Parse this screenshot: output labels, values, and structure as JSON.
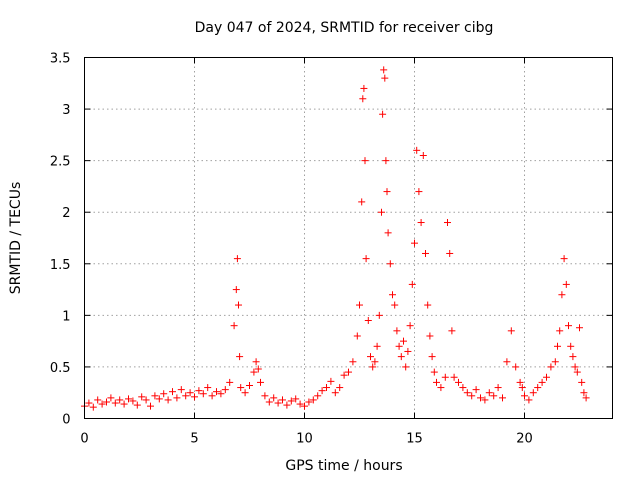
{
  "chart_data": {
    "type": "scatter",
    "title": "Day 047 of 2024, SRMTID for receiver cibg",
    "xlabel": "GPS time / hours",
    "ylabel": "SRMTID / TECUs",
    "xlim": [
      0,
      24
    ],
    "ylim": [
      0,
      3.5
    ],
    "xticks": [
      0,
      5,
      10,
      15,
      20
    ],
    "xtick_labels": [
      "0",
      "5",
      "10",
      "15",
      "20"
    ],
    "yticks": [
      0,
      0.5,
      1,
      1.5,
      2,
      2.5,
      3,
      3.5
    ],
    "ytick_labels": [
      "0",
      "0.5",
      "1",
      "1.5",
      "2",
      "2.5",
      "3",
      "3.5"
    ],
    "grid": true,
    "marker": "+",
    "series": [
      {
        "name": "SRMTID",
        "color": "#ff0000",
        "x": [
          0.0,
          0.2,
          0.4,
          0.6,
          0.8,
          1.0,
          1.2,
          1.4,
          1.6,
          1.8,
          2.0,
          2.2,
          2.4,
          2.6,
          2.8,
          3.0,
          3.2,
          3.4,
          3.6,
          3.8,
          4.0,
          4.2,
          4.4,
          4.6,
          4.8,
          5.0,
          5.2,
          5.4,
          5.6,
          5.8,
          6.0,
          6.2,
          6.4,
          6.6,
          6.8,
          6.9,
          6.95,
          7.0,
          7.05,
          7.1,
          7.3,
          7.5,
          7.7,
          7.8,
          7.9,
          8.0,
          8.2,
          8.4,
          8.6,
          8.8,
          9.0,
          9.2,
          9.4,
          9.6,
          9.8,
          10.0,
          10.2,
          10.4,
          10.6,
          10.8,
          11.0,
          11.2,
          11.4,
          11.6,
          11.8,
          12.0,
          12.2,
          12.4,
          12.5,
          12.6,
          12.65,
          12.7,
          12.75,
          12.8,
          12.9,
          13.0,
          13.1,
          13.2,
          13.3,
          13.4,
          13.5,
          13.55,
          13.6,
          13.65,
          13.7,
          13.75,
          13.8,
          13.9,
          14.0,
          14.1,
          14.2,
          14.3,
          14.4,
          14.5,
          14.6,
          14.7,
          14.8,
          14.9,
          15.0,
          15.1,
          15.2,
          15.3,
          15.4,
          15.5,
          15.6,
          15.7,
          15.8,
          15.9,
          16.0,
          16.2,
          16.4,
          16.5,
          16.6,
          16.7,
          16.8,
          17.0,
          17.2,
          17.4,
          17.6,
          17.8,
          18.0,
          18.2,
          18.4,
          18.6,
          18.8,
          19.0,
          19.2,
          19.4,
          19.6,
          19.8,
          19.9,
          20.0,
          20.2,
          20.4,
          20.6,
          20.8,
          21.0,
          21.2,
          21.4,
          21.5,
          21.6,
          21.7,
          21.8,
          21.9,
          22.0,
          22.1,
          22.2,
          22.3,
          22.4,
          22.5,
          22.6,
          22.7,
          22.8
        ],
        "y": [
          0.12,
          0.15,
          0.11,
          0.18,
          0.14,
          0.16,
          0.2,
          0.15,
          0.18,
          0.14,
          0.19,
          0.17,
          0.13,
          0.21,
          0.18,
          0.12,
          0.22,
          0.19,
          0.24,
          0.18,
          0.26,
          0.2,
          0.28,
          0.22,
          0.25,
          0.21,
          0.27,
          0.24,
          0.3,
          0.22,
          0.26,
          0.24,
          0.28,
          0.35,
          0.9,
          1.25,
          1.55,
          1.1,
          0.6,
          0.3,
          0.25,
          0.32,
          0.45,
          0.55,
          0.48,
          0.35,
          0.22,
          0.16,
          0.2,
          0.15,
          0.18,
          0.13,
          0.17,
          0.19,
          0.14,
          0.12,
          0.16,
          0.18,
          0.22,
          0.27,
          0.3,
          0.36,
          0.25,
          0.3,
          0.42,
          0.45,
          0.55,
          0.8,
          1.1,
          2.1,
          3.1,
          3.2,
          2.5,
          1.55,
          0.95,
          0.6,
          0.5,
          0.55,
          0.7,
          1.0,
          2.0,
          2.95,
          3.38,
          3.3,
          2.5,
          2.2,
          1.8,
          1.5,
          1.2,
          1.1,
          0.85,
          0.7,
          0.6,
          0.75,
          0.5,
          0.65,
          0.9,
          1.3,
          1.7,
          2.6,
          2.2,
          1.9,
          2.55,
          1.6,
          1.1,
          0.8,
          0.6,
          0.45,
          0.35,
          0.3,
          0.4,
          1.9,
          1.6,
          0.85,
          0.4,
          0.35,
          0.3,
          0.25,
          0.22,
          0.28,
          0.2,
          0.18,
          0.25,
          0.22,
          0.3,
          0.2,
          0.55,
          0.85,
          0.5,
          0.35,
          0.3,
          0.22,
          0.18,
          0.25,
          0.3,
          0.35,
          0.4,
          0.5,
          0.55,
          0.7,
          0.85,
          1.2,
          1.55,
          1.3,
          0.9,
          0.7,
          0.6,
          0.5,
          0.45,
          0.88,
          0.35,
          0.25,
          0.2
        ]
      }
    ]
  }
}
